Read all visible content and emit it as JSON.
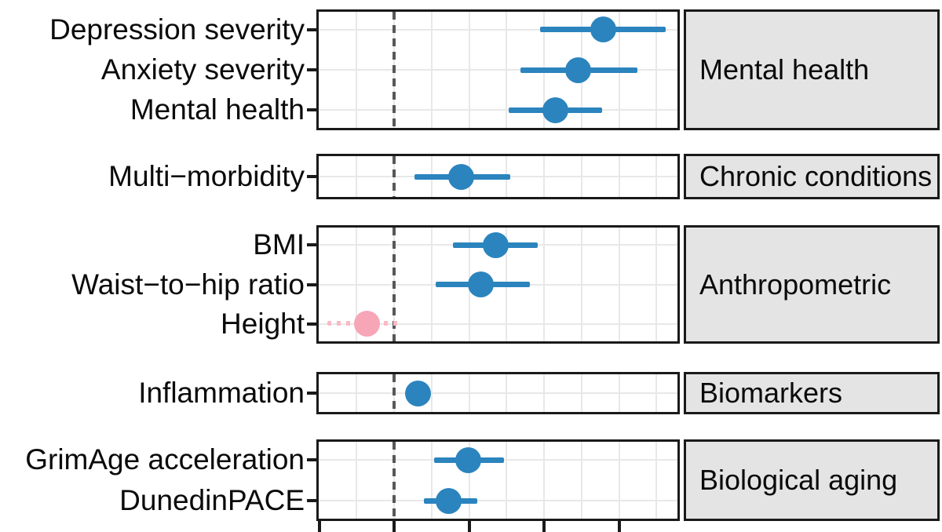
{
  "figure": {
    "description": "Faceted forest plot of standardized associations with 95% confidence intervals; dashed vertical line marks the null reference; x-axis tick labels are cropped out of view at the bottom of the image",
    "colors": {
      "significant_point": "#2b84be",
      "nonsignificant_point": "#f6a6b6",
      "nonsignificant_ci": "#f8bac5",
      "reference_line": "#585858",
      "strip_background": "#e4e4e4",
      "panel_border": "#1a1a1a",
      "gridline": "#e8e8e8"
    }
  },
  "chart_data": {
    "type": "scatter",
    "subtype": "forest-plot-with-error-bars",
    "title": "",
    "xlabel": "",
    "ylabel": "",
    "x_axis": {
      "units": "grid divisions relative to the dashed reference line (numeric tick labels are cropped below the visible image)",
      "reference_line_x": 0,
      "tick_positions": [
        -1,
        0,
        1,
        2,
        3
      ],
      "tick_labels_visible": false,
      "range": [
        -1.03,
        3.81
      ],
      "grid": "on, vertical gridline every 0.5 division"
    },
    "legend": "none",
    "panels": [
      {
        "strip_label": "Mental health",
        "rows": [
          {
            "label": "Depression severity",
            "estimate": 2.79,
            "ci_low": 1.95,
            "ci_high": 3.62,
            "significant": true
          },
          {
            "label": "Anxiety severity",
            "estimate": 2.46,
            "ci_low": 1.69,
            "ci_high": 3.25,
            "significant": true
          },
          {
            "label": "Mental health",
            "estimate": 2.15,
            "ci_low": 1.53,
            "ci_high": 2.77,
            "significant": true
          }
        ]
      },
      {
        "strip_label": "Chronic conditions",
        "rows": [
          {
            "label": "Multi−morbidity",
            "estimate": 0.9,
            "ci_low": 0.27,
            "ci_high": 1.55,
            "significant": true
          }
        ]
      },
      {
        "strip_label": "Anthropometric",
        "rows": [
          {
            "label": "BMI",
            "estimate": 1.36,
            "ci_low": 0.79,
            "ci_high": 1.92,
            "significant": true
          },
          {
            "label": "Waist−to−hip ratio",
            "estimate": 1.16,
            "ci_low": 0.56,
            "ci_high": 1.81,
            "significant": true
          },
          {
            "label": "Height",
            "estimate": -0.36,
            "ci_low": -0.89,
            "ci_high": 0.1,
            "significant": false
          }
        ]
      },
      {
        "strip_label": "Biomarkers",
        "rows": [
          {
            "label": "Inflammation",
            "estimate": 0.32,
            "ci_low": 0.23,
            "ci_high": 0.43,
            "significant": true
          }
        ]
      },
      {
        "strip_label": "Biological aging",
        "rows": [
          {
            "label": "GrimAge acceleration",
            "estimate": 0.99,
            "ci_low": 0.53,
            "ci_high": 1.47,
            "significant": true
          },
          {
            "label": "DunedinPACE",
            "estimate": 0.73,
            "ci_low": 0.4,
            "ci_high": 1.11,
            "significant": true
          }
        ]
      }
    ]
  }
}
